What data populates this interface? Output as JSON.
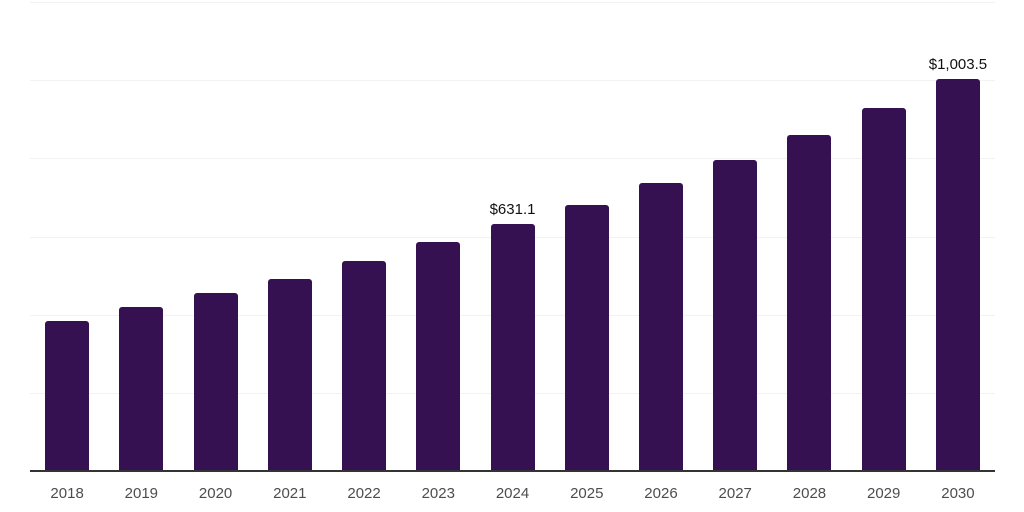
{
  "chart_data": {
    "type": "bar",
    "title": "",
    "xlabel": "",
    "ylabel": "",
    "categories": [
      "2018",
      "2019",
      "2020",
      "2021",
      "2022",
      "2023",
      "2024",
      "2025",
      "2026",
      "2027",
      "2028",
      "2029",
      "2030"
    ],
    "values": [
      383,
      419,
      456,
      492,
      537,
      586,
      631.1,
      680,
      736,
      795,
      861,
      930,
      1003.5
    ],
    "data_labels": {
      "2024": "$631.1",
      "2030": "$1,003.5"
    },
    "ylim": [
      0,
      1200
    ],
    "gridline_step": 200,
    "grid": true,
    "legend": false,
    "y_tick_labels_visible": false,
    "bar_color": "#361151",
    "grid_color": "#f2f2f2",
    "axis_color": "#333333",
    "tick_label_color": "#4d4d4d",
    "data_label_color": "#111111"
  }
}
